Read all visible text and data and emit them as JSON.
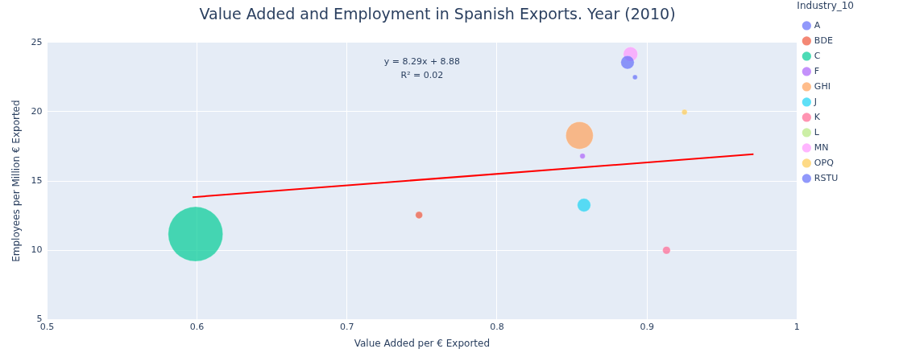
{
  "chart_data": {
    "type": "bubble",
    "title": "Value Added and Employment in Spanish Exports. Year (2010)",
    "xlabel": "Value Added per € Exported",
    "ylabel": "Employees per Million € Exported",
    "legend_title": "Industry_10",
    "legend": "right",
    "grid": true,
    "xlim": [
      0.5,
      1
    ],
    "xticks": [
      0.5,
      0.6,
      0.7,
      0.8,
      0.9,
      1
    ],
    "ylim": [
      5,
      25
    ],
    "yticks": [
      5,
      10,
      15,
      20,
      25
    ],
    "annotations": [
      "y = 8.29x + 8.88",
      "R² = 0.02"
    ],
    "series": [
      {
        "name": "A",
        "color": "#636efa",
        "x": [
          0.887
        ],
        "values": [
          23.56
        ],
        "sizes": [
          0.06
        ]
      },
      {
        "name": "BDE",
        "color": "#ef553b",
        "x": [
          0.748
        ],
        "values": [
          12.54
        ],
        "sizes": [
          0.017
        ]
      },
      {
        "name": "C",
        "color": "#00cc96",
        "x": [
          0.599
        ],
        "values": [
          11.17
        ],
        "sizes": [
          1
        ]
      },
      {
        "name": "F",
        "color": "#ab63fa",
        "x": [
          0.857
        ],
        "values": [
          16.8
        ],
        "sizes": [
          0.01
        ]
      },
      {
        "name": "GHI",
        "color": "#ffa15a",
        "x": [
          0.855
        ],
        "values": [
          18.29
        ],
        "sizes": [
          0.25
        ]
      },
      {
        "name": "J",
        "color": "#19d3f3",
        "x": [
          0.858
        ],
        "values": [
          13.26
        ],
        "sizes": [
          0.06
        ]
      },
      {
        "name": "K",
        "color": "#ff6692",
        "x": [
          0.913
        ],
        "values": [
          10.0
        ],
        "sizes": [
          0.02
        ]
      },
      {
        "name": "L",
        "color": "#b6e880",
        "x": [
          null
        ],
        "values": [
          null
        ],
        "sizes": [
          null
        ]
      },
      {
        "name": "MN",
        "color": "#ff97ff",
        "x": [
          0.889
        ],
        "values": [
          24.16
        ],
        "sizes": [
          0.07
        ]
      },
      {
        "name": "OPQ",
        "color": "#fecb52",
        "x": [
          0.925
        ],
        "values": [
          19.97
        ],
        "sizes": [
          0.01
        ]
      },
      {
        "name": "RSTU",
        "color": "#636efa",
        "x": [
          0.892
        ],
        "values": [
          22.49
        ],
        "sizes": [
          0.008
        ]
      },
      {
        "type": "line",
        "color": "#ff0000",
        "x": [
          0.597,
          0.971
        ],
        "values": [
          13.83,
          16.93
        ]
      }
    ]
  }
}
